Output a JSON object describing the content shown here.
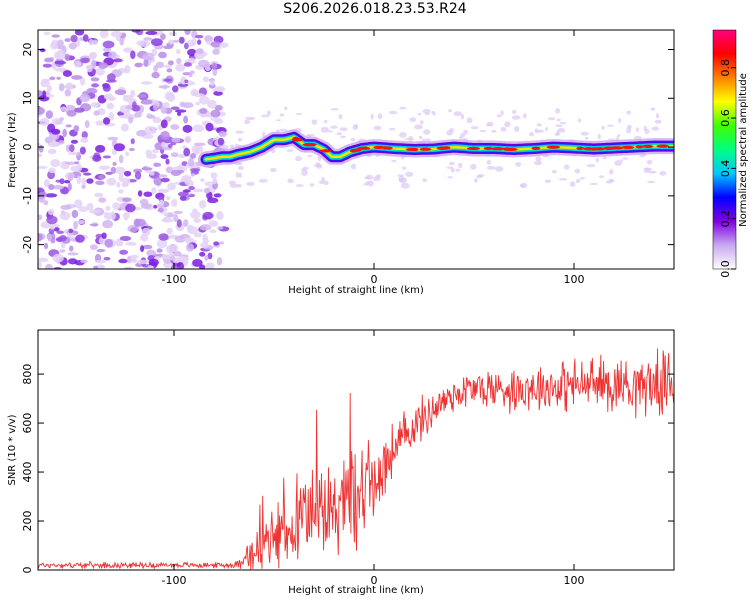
{
  "title": "S206.2026.018.23.53.R24",
  "chart_data": [
    {
      "type": "heatmap",
      "title": "S206.2026.018.23.53.R24",
      "xlabel": "Height of straight line (km)",
      "ylabel": "Frequency (Hz)",
      "xlim": [
        -168,
        150
      ],
      "ylim": [
        -25,
        24
      ],
      "xticks": [
        -100,
        0,
        100
      ],
      "yticks": [
        -20,
        -10,
        0,
        10,
        20
      ],
      "noise_region_x": [
        -168,
        -75
      ],
      "ridge": {
        "description": "narrow high-amplitude line near 0 Hz",
        "x": [
          -84,
          -80,
          -76,
          -72,
          -68,
          -62,
          -56,
          -50,
          -45,
          -40,
          -35,
          -30,
          -25,
          -21,
          -17,
          -12,
          -6,
          0,
          10,
          20,
          30,
          40,
          50,
          60,
          70,
          80,
          90,
          100,
          110,
          120,
          130,
          140,
          150
        ],
        "frequency": [
          -2.5,
          -2.3,
          -2,
          -2,
          -1.5,
          -1,
          0,
          1.5,
          1.5,
          2,
          0.5,
          0.5,
          -0.5,
          -2,
          -2,
          -1,
          -0.3,
          0,
          -0.3,
          -0.5,
          -0.4,
          0,
          -0.3,
          -0.3,
          -0.5,
          -0.3,
          0,
          -0.2,
          -0.4,
          -0.2,
          0,
          0.2,
          0.2
        ]
      },
      "colorbar": {
        "label": "Normalized spectral amplitude",
        "range": [
          0,
          0.95
        ],
        "ticks": [
          "0.0",
          "0.2",
          "0.4",
          "0.6",
          "0.8"
        ],
        "colors": [
          "#ffffff",
          "#c8a8f0",
          "#8000e0",
          "#0000ff",
          "#00c8ff",
          "#00ff80",
          "#40ff00",
          "#ffff00",
          "#ff8000",
          "#ff0000",
          "#ff0080"
        ]
      }
    },
    {
      "type": "line",
      "xlabel": "Height of straight line (km)",
      "ylabel": "SNR (10 * v/v)",
      "xlim": [
        -168,
        150
      ],
      "ylim": [
        0,
        980
      ],
      "xticks": [
        -100,
        0,
        100
      ],
      "yticks": [
        0,
        200,
        400,
        600,
        800
      ],
      "color": "#ee3333",
      "series": [
        {
          "name": "SNR",
          "x": [
            -168,
            -150,
            -130,
            -110,
            -90,
            -70,
            -65,
            -60,
            -55,
            -50,
            -45,
            -40,
            -35,
            -30,
            -25,
            -20,
            -15,
            -10,
            -5,
            0,
            5,
            10,
            15,
            20,
            25,
            30,
            40,
            50,
            60,
            70,
            80,
            90,
            100,
            110,
            120,
            130,
            140,
            150
          ],
          "baseline": [
            20,
            20,
            20,
            20,
            20,
            20,
            35,
            70,
            100,
            120,
            150,
            170,
            195,
            215,
            230,
            250,
            280,
            300,
            330,
            370,
            430,
            490,
            540,
            590,
            620,
            660,
            720,
            740,
            740,
            740,
            750,
            750,
            755,
            760,
            760,
            760,
            760,
            760
          ],
          "spread": [
            12,
            12,
            12,
            12,
            12,
            12,
            40,
            80,
            110,
            130,
            140,
            150,
            160,
            170,
            180,
            190,
            210,
            230,
            200,
            170,
            140,
            120,
            110,
            100,
            90,
            85,
            80,
            85,
            90,
            95,
            100,
            105,
            110,
            115,
            120,
            125,
            130,
            130
          ]
        }
      ]
    }
  ]
}
